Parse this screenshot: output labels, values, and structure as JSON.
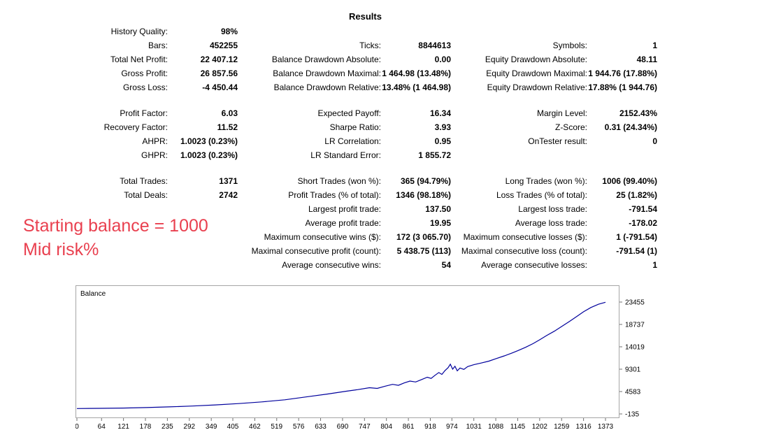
{
  "title": "Results",
  "annotation": {
    "line1": "Starting balance = 1000",
    "line2": "Mid risk%",
    "color": "#e9404f"
  },
  "stats": {
    "col1": [
      {
        "label": "History Quality:",
        "value": "98%"
      },
      {
        "label": "Bars:",
        "value": "452255"
      },
      {
        "label": "Total Net Profit:",
        "value": "22 407.12"
      },
      {
        "label": "Gross Profit:",
        "value": "26 857.56"
      },
      {
        "label": "Gross Loss:",
        "value": "-4 450.44"
      },
      null,
      {
        "label": "Profit Factor:",
        "value": "6.03"
      },
      {
        "label": "Recovery Factor:",
        "value": "11.52"
      },
      {
        "label": "AHPR:",
        "value": "1.0023 (0.23%)"
      },
      {
        "label": "GHPR:",
        "value": "1.0023 (0.23%)"
      },
      null,
      {
        "label": "Total Trades:",
        "value": "1371"
      },
      {
        "label": "Total Deals:",
        "value": "2742"
      },
      null,
      null,
      null,
      null,
      null
    ],
    "col2": [
      null,
      {
        "label": "Ticks:",
        "value": "8844613"
      },
      {
        "label": "Balance Drawdown Absolute:",
        "value": "0.00"
      },
      {
        "label": "Balance Drawdown Maximal:",
        "value": "1 464.98 (13.48%)"
      },
      {
        "label": "Balance Drawdown Relative:",
        "value": "13.48% (1 464.98)"
      },
      null,
      {
        "label": "Expected Payoff:",
        "value": "16.34"
      },
      {
        "label": "Sharpe Ratio:",
        "value": "3.93"
      },
      {
        "label": "LR Correlation:",
        "value": "0.95"
      },
      {
        "label": "LR Standard Error:",
        "value": "1 855.72"
      },
      null,
      {
        "label": "Short Trades (won %):",
        "value": "365 (94.79%)"
      },
      {
        "label": "Profit Trades (% of total):",
        "value": "1346 (98.18%)"
      },
      {
        "label": "Largest profit trade:",
        "value": "137.50"
      },
      {
        "label": "Average profit trade:",
        "value": "19.95"
      },
      {
        "label": "Maximum consecutive wins ($):",
        "value": "172 (3 065.70)"
      },
      {
        "label": "Maximal consecutive profit (count):",
        "value": "5 438.75 (113)"
      },
      {
        "label": "Average consecutive wins:",
        "value": "54"
      }
    ],
    "col3": [
      null,
      {
        "label": "Symbols:",
        "value": "1"
      },
      {
        "label": "Equity Drawdown Absolute:",
        "value": "48.11"
      },
      {
        "label": "Equity Drawdown Maximal:",
        "value": "1 944.76 (17.88%)"
      },
      {
        "label": "Equity Drawdown Relative:",
        "value": "17.88% (1 944.76)"
      },
      null,
      {
        "label": "Margin Level:",
        "value": "2152.43%"
      },
      {
        "label": "Z-Score:",
        "value": "0.31 (24.34%)"
      },
      {
        "label": "OnTester result:",
        "value": "0"
      },
      null,
      null,
      {
        "label": "Long Trades (won %):",
        "value": "1006 (99.40%)"
      },
      {
        "label": "Loss Trades (% of total):",
        "value": "25 (1.82%)"
      },
      {
        "label": "Largest loss trade:",
        "value": "-791.54"
      },
      {
        "label": "Average loss trade:",
        "value": "-178.02"
      },
      {
        "label": "Maximum consecutive losses ($):",
        "value": "1 (-791.54)"
      },
      {
        "label": "Maximal consecutive loss (count):",
        "value": "-791.54 (1)"
      },
      {
        "label": "Average consecutive losses:",
        "value": "1"
      }
    ]
  },
  "chart_data": {
    "type": "line",
    "title": "Balance",
    "line_color": "#00009c",
    "x_ticks": [
      0,
      64,
      121,
      178,
      235,
      292,
      349,
      405,
      462,
      519,
      576,
      633,
      690,
      747,
      804,
      861,
      918,
      974,
      1031,
      1088,
      1145,
      1202,
      1259,
      1316,
      1373
    ],
    "y_ticks": [
      23455,
      18737,
      14019,
      9301,
      4583,
      -135
    ],
    "points": [
      [
        0,
        1000
      ],
      [
        60,
        1040
      ],
      [
        120,
        1110
      ],
      [
        180,
        1210
      ],
      [
        240,
        1350
      ],
      [
        300,
        1530
      ],
      [
        360,
        1760
      ],
      [
        420,
        2050
      ],
      [
        480,
        2400
      ],
      [
        540,
        2850
      ],
      [
        600,
        3500
      ],
      [
        650,
        4050
      ],
      [
        700,
        4650
      ],
      [
        730,
        5000
      ],
      [
        760,
        5400
      ],
      [
        780,
        5250
      ],
      [
        800,
        5700
      ],
      [
        820,
        6100
      ],
      [
        835,
        5900
      ],
      [
        850,
        6400
      ],
      [
        865,
        6800
      ],
      [
        880,
        6600
      ],
      [
        895,
        7100
      ],
      [
        910,
        7600
      ],
      [
        920,
        7350
      ],
      [
        930,
        8000
      ],
      [
        940,
        8600
      ],
      [
        948,
        8200
      ],
      [
        956,
        9000
      ],
      [
        964,
        9600
      ],
      [
        970,
        10350
      ],
      [
        976,
        9300
      ],
      [
        982,
        9900
      ],
      [
        988,
        8950
      ],
      [
        995,
        9550
      ],
      [
        1005,
        9250
      ],
      [
        1015,
        9850
      ],
      [
        1031,
        10250
      ],
      [
        1050,
        10600
      ],
      [
        1070,
        11000
      ],
      [
        1088,
        11500
      ],
      [
        1110,
        12100
      ],
      [
        1130,
        12700
      ],
      [
        1145,
        13200
      ],
      [
        1165,
        13900
      ],
      [
        1185,
        14700
      ],
      [
        1202,
        15500
      ],
      [
        1220,
        16400
      ],
      [
        1240,
        17300
      ],
      [
        1259,
        18300
      ],
      [
        1280,
        19400
      ],
      [
        1300,
        20500
      ],
      [
        1316,
        21400
      ],
      [
        1335,
        22300
      ],
      [
        1355,
        23000
      ],
      [
        1373,
        23407
      ]
    ]
  }
}
